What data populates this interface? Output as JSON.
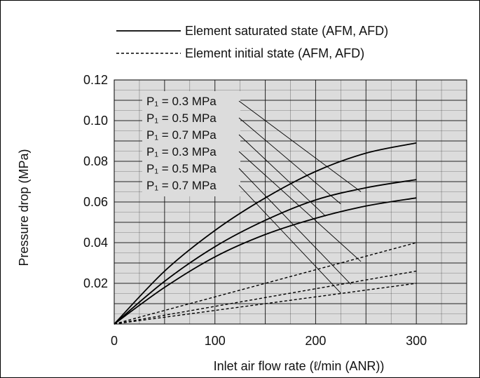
{
  "chart_data": {
    "type": "line",
    "xlabel": "Inlet air flow rate (ℓ/min (ANR))",
    "ylabel": "Pressure drop (MPa)",
    "xlim": [
      0,
      350
    ],
    "ylim": [
      0,
      0.12
    ],
    "x_ticks": [
      "0",
      "100",
      "200",
      "300"
    ],
    "y_ticks": [
      "0.02",
      "0.04",
      "0.06",
      "0.08",
      "0.10",
      "0.12"
    ],
    "legend": [
      {
        "label": "Element saturated state (AFM, AFD)",
        "style": "solid"
      },
      {
        "label": "Element initial state (AFM, AFD)",
        "style": "dashed"
      }
    ],
    "series": [
      {
        "group": "saturated",
        "annotation": "P₁ = 0.3 MPa",
        "style": "solid",
        "x": [
          0,
          50,
          100,
          150,
          200,
          250,
          300
        ],
        "y": [
          0,
          0.026,
          0.046,
          0.062,
          0.075,
          0.084,
          0.089
        ]
      },
      {
        "group": "saturated",
        "annotation": "P₁ = 0.5 MPa",
        "style": "solid",
        "x": [
          0,
          50,
          100,
          150,
          200,
          250,
          300
        ],
        "y": [
          0,
          0.021,
          0.038,
          0.051,
          0.061,
          0.067,
          0.071
        ]
      },
      {
        "group": "saturated",
        "annotation": "P₁ = 0.7 MPa",
        "style": "solid",
        "x": [
          0,
          50,
          100,
          150,
          200,
          250,
          300
        ],
        "y": [
          0,
          0.018,
          0.033,
          0.044,
          0.052,
          0.058,
          0.062
        ]
      },
      {
        "group": "initial",
        "annotation": "P₁ = 0.3 MPa",
        "style": "dashed",
        "x": [
          0,
          300
        ],
        "y": [
          0,
          0.04
        ]
      },
      {
        "group": "initial",
        "annotation": "P₁ = 0.5 MPa",
        "style": "dashed",
        "x": [
          0,
          300
        ],
        "y": [
          0,
          0.026
        ]
      },
      {
        "group": "initial",
        "annotation": "P₁ = 0.7 MPa",
        "style": "dashed",
        "x": [
          0,
          300
        ],
        "y": [
          0,
          0.02
        ]
      }
    ],
    "annotations": [
      {
        "text": "P₁ = 0.3 MPa",
        "target_x": 245,
        "target_y": 0.065
      },
      {
        "text": "P₁ = 0.5 MPa",
        "target_x": 225,
        "target_y": 0.059
      },
      {
        "text": "P₁ = 0.7 MPa",
        "target_x": 210,
        "target_y": 0.053
      },
      {
        "text": "P₁ = 0.3 MPa",
        "target_x": 245,
        "target_y": 0.0307
      },
      {
        "text": "P₁ = 0.5 MPa",
        "target_x": 235,
        "target_y": 0.0195
      },
      {
        "text": "P₁ = 0.7 MPa",
        "target_x": 225,
        "target_y": 0.0152
      }
    ],
    "grid": true
  }
}
